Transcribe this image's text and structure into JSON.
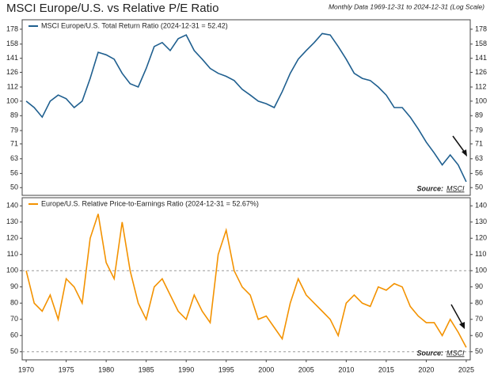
{
  "chart_data": [
    {
      "type": "line",
      "title": "MSCI Europe/U.S. vs Relative P/E Ratio",
      "subtitle": "Monthly Data 1969-12-31 to 2024-12-31 (Log Scale)",
      "log_scale": true,
      "source_label": "Source:",
      "source": "MSCI",
      "x": [
        1970,
        1971,
        1972,
        1973,
        1974,
        1975,
        1976,
        1977,
        1978,
        1979,
        1980,
        1981,
        1982,
        1983,
        1984,
        1985,
        1986,
        1987,
        1988,
        1989,
        1990,
        1991,
        1992,
        1993,
        1994,
        1995,
        1996,
        1997,
        1998,
        1999,
        2000,
        2001,
        2002,
        2003,
        2004,
        2005,
        2006,
        2007,
        2008,
        2009,
        2010,
        2011,
        2012,
        2013,
        2014,
        2015,
        2016,
        2017,
        2018,
        2019,
        2020,
        2021,
        2022,
        2023,
        2024,
        2025
      ],
      "xlim": [
        1969.5,
        2025.5
      ],
      "series": [
        {
          "name": "MSCI Europe/U.S. Total Return Ratio (2024-12-31 = 52.42)",
          "color": "#1f5f8f",
          "values": [
            100,
            95,
            88,
            100,
            105,
            102,
            95,
            100,
            120,
            148,
            145,
            140,
            125,
            115,
            112,
            130,
            155,
            160,
            150,
            165,
            170,
            150,
            140,
            130,
            125,
            122,
            118,
            110,
            105,
            100,
            98,
            95,
            108,
            125,
            140,
            150,
            160,
            172,
            170,
            155,
            140,
            125,
            120,
            118,
            112,
            105,
            95,
            95,
            88,
            80,
            72,
            66,
            60,
            65,
            60,
            52.42
          ]
        }
      ],
      "ylim": [
        47,
        192
      ],
      "yticks": [
        50,
        56,
        63,
        71,
        79,
        89,
        100,
        112,
        126,
        141,
        158,
        178
      ]
    },
    {
      "type": "line",
      "source_label": "Source:",
      "source": "MSCI",
      "x": [
        1970,
        1971,
        1972,
        1973,
        1974,
        1975,
        1976,
        1977,
        1978,
        1979,
        1980,
        1981,
        1982,
        1983,
        1984,
        1985,
        1986,
        1987,
        1988,
        1989,
        1990,
        1991,
        1992,
        1993,
        1994,
        1995,
        1996,
        1997,
        1998,
        1999,
        2000,
        2001,
        2002,
        2003,
        2004,
        2005,
        2006,
        2007,
        2008,
        2009,
        2010,
        2011,
        2012,
        2013,
        2014,
        2015,
        2016,
        2017,
        2018,
        2019,
        2020,
        2021,
        2022,
        2023,
        2024,
        2025
      ],
      "xlim": [
        1969.5,
        2025.5
      ],
      "xticks": [
        1970,
        1975,
        1980,
        1985,
        1990,
        1995,
        2000,
        2005,
        2010,
        2015,
        2020,
        2025
      ],
      "series": [
        {
          "name": "Europe/U.S. Relative Price-to-Earnings Ratio (2024-12-31 = 52.67%)",
          "color": "#f39200",
          "values": [
            100,
            80,
            75,
            85,
            70,
            95,
            90,
            80,
            120,
            135,
            105,
            95,
            130,
            100,
            80,
            70,
            90,
            95,
            85,
            75,
            70,
            85,
            75,
            68,
            110,
            125,
            100,
            90,
            85,
            70,
            72,
            65,
            58,
            80,
            95,
            85,
            80,
            75,
            70,
            60,
            80,
            85,
            80,
            78,
            90,
            88,
            92,
            90,
            78,
            72,
            68,
            68,
            60,
            70,
            62,
            52.67
          ]
        }
      ],
      "ylim": [
        45,
        145
      ],
      "yticks": [
        50,
        60,
        70,
        80,
        90,
        100,
        110,
        120,
        130,
        140
      ],
      "reference_lines": [
        100,
        50
      ]
    }
  ]
}
